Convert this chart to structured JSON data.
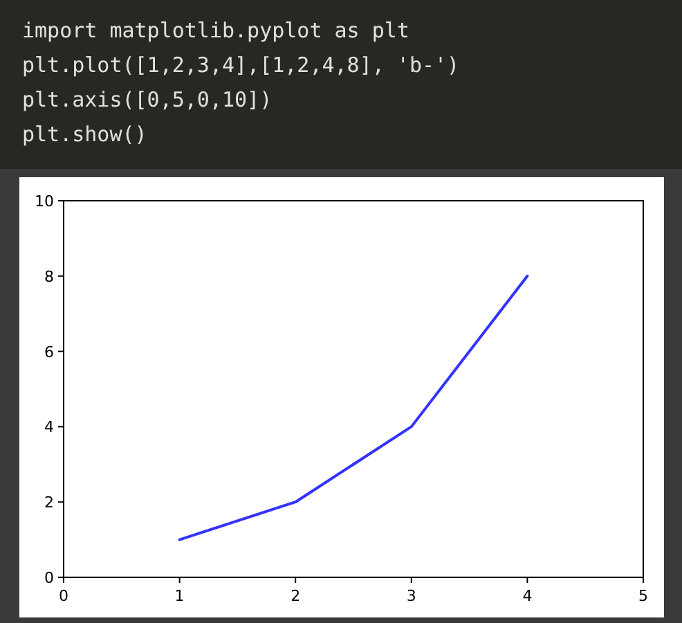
{
  "chart_data": {
    "type": "line",
    "annotations": [
      "import matplotlib.pyplot as plt",
      "plt.plot([1,2,3,4],[1,2,4,8], 'b-')",
      "plt.axis([0,5,0,10])",
      "plt.show()"
    ],
    "x": [
      1,
      2,
      3,
      4
    ],
    "series": [
      {
        "color": "#3333ff",
        "values": [
          1,
          2,
          4,
          8
        ]
      }
    ],
    "xlim": [
      0,
      5
    ],
    "ylim": [
      0,
      10
    ],
    "xticks": [
      0,
      1,
      2,
      3,
      4,
      5
    ],
    "yticks": [
      0,
      2,
      4,
      6,
      8,
      10
    ],
    "grid": false,
    "marker": "none",
    "line_style": "solid"
  }
}
